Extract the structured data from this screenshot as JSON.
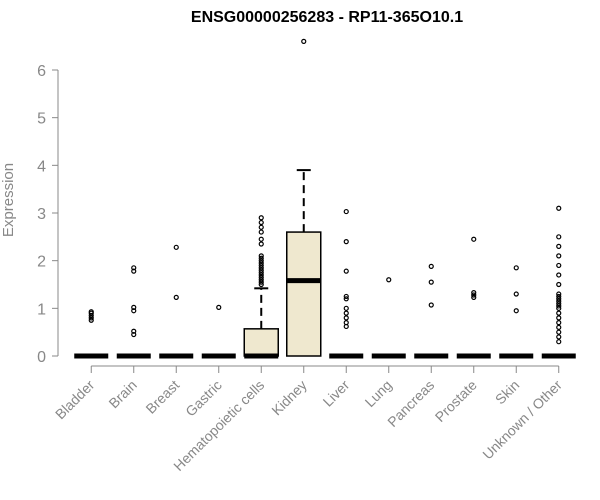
{
  "chart_data": {
    "type": "box",
    "title": "ENSG00000256283 - RP11-365O10.1",
    "xlabel": "",
    "ylabel": "Expression",
    "ylim": [
      0,
      6.6
    ],
    "yticks": [
      0,
      1,
      2,
      3,
      4,
      5,
      6
    ],
    "categories": [
      "Bladder",
      "Brain",
      "Breast",
      "Gastric",
      "Hematopoietic cells",
      "Kidney",
      "Liver",
      "Lung",
      "Pancreas",
      "Prostate",
      "Skin",
      "Unknown / Other"
    ],
    "boxes": [
      {
        "q1": 0,
        "median": 0,
        "q3": 0,
        "whisker_low": 0,
        "whisker_high": 0,
        "outliers": [
          0.75,
          0.8,
          0.85,
          0.9,
          0.93
        ]
      },
      {
        "q1": 0,
        "median": 0,
        "q3": 0,
        "whisker_low": 0,
        "whisker_high": 0,
        "outliers": [
          0.45,
          0.52,
          0.95,
          1.02,
          1.78,
          1.85
        ]
      },
      {
        "q1": 0,
        "median": 0,
        "q3": 0,
        "whisker_low": 0,
        "whisker_high": 0,
        "outliers": [
          1.23,
          2.28
        ]
      },
      {
        "q1": 0,
        "median": 0,
        "q3": 0,
        "whisker_low": 0,
        "whisker_high": 0,
        "outliers": [
          1.02
        ]
      },
      {
        "q1": 0,
        "median": 0,
        "q3": 0.57,
        "whisker_low": 0,
        "whisker_high": 1.42,
        "outliers": [
          1.5,
          1.55,
          1.6,
          1.65,
          1.7,
          1.75,
          1.8,
          1.85,
          1.9,
          1.95,
          2.0,
          2.05,
          2.1,
          2.35,
          2.45,
          2.6,
          2.7,
          2.8,
          2.9
        ]
      },
      {
        "q1": 0,
        "median": 1.58,
        "q3": 2.6,
        "whisker_low": 0,
        "whisker_high": 3.9,
        "outliers": [
          6.6
        ]
      },
      {
        "q1": 0,
        "median": 0,
        "q3": 0,
        "whisker_low": 0,
        "whisker_high": 0,
        "outliers": [
          0.62,
          0.7,
          0.8,
          0.9,
          1.0,
          1.2,
          1.25,
          1.78,
          2.4,
          3.03
        ]
      },
      {
        "q1": 0,
        "median": 0,
        "q3": 0,
        "whisker_low": 0,
        "whisker_high": 0,
        "outliers": [
          1.6
        ]
      },
      {
        "q1": 0,
        "median": 0,
        "q3": 0,
        "whisker_low": 0,
        "whisker_high": 0,
        "outliers": [
          1.07,
          1.55,
          1.88
        ]
      },
      {
        "q1": 0,
        "median": 0,
        "q3": 0,
        "whisker_low": 0,
        "whisker_high": 0,
        "outliers": [
          1.23,
          1.28,
          1.33,
          2.45
        ]
      },
      {
        "q1": 0,
        "median": 0,
        "q3": 0,
        "whisker_low": 0,
        "whisker_high": 0,
        "outliers": [
          0.95,
          1.3,
          1.85
        ]
      },
      {
        "q1": 0,
        "median": 0,
        "q3": 0,
        "whisker_low": 0,
        "whisker_high": 0,
        "outliers": [
          0.3,
          0.4,
          0.5,
          0.6,
          0.7,
          0.8,
          0.9,
          1.0,
          1.05,
          1.1,
          1.15,
          1.2,
          1.25,
          1.3,
          1.5,
          1.7,
          1.9,
          2.1,
          2.3,
          2.5,
          3.1
        ]
      }
    ],
    "colors": {
      "box_fill": "#efe8cf",
      "box_stroke": "#000000",
      "axis": "#888888"
    },
    "grid": false,
    "legend": "none"
  }
}
